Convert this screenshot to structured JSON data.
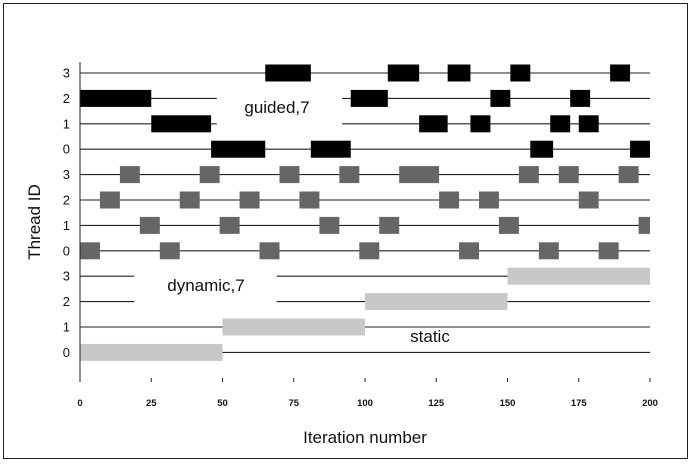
{
  "chart_data": {
    "type": "gantt",
    "xlabel": "Iteration number",
    "ylabel": "Thread ID",
    "xlim": [
      0,
      200
    ],
    "x_ticks": [
      "0",
      "25",
      "50",
      "75",
      "100",
      "125",
      "150",
      "175",
      "200"
    ],
    "grid": false,
    "groups": [
      {
        "name": "guided,7",
        "color": "#000000",
        "threads": [
          {
            "id": "0",
            "blocks": [
              [
                46,
                65
              ],
              [
                81,
                95
              ],
              [
                158,
                166
              ],
              [
                193,
                200
              ]
            ]
          },
          {
            "id": "1",
            "blocks": [
              [
                25,
                46
              ],
              [
                119,
                129
              ],
              [
                137,
                144
              ],
              [
                165,
                172
              ],
              [
                175,
                182
              ]
            ]
          },
          {
            "id": "2",
            "blocks": [
              [
                0,
                25
              ],
              [
                95,
                108
              ],
              [
                144,
                151
              ],
              [
                172,
                179
              ]
            ]
          },
          {
            "id": "3",
            "blocks": [
              [
                65,
                81
              ],
              [
                108,
                119
              ],
              [
                129,
                137
              ],
              [
                151,
                158
              ],
              [
                186,
                193
              ]
            ]
          }
        ]
      },
      {
        "name": "dynamic,7",
        "color": "#666666",
        "threads": [
          {
            "id": "0",
            "blocks": [
              [
                0,
                7
              ],
              [
                28,
                35
              ],
              [
                63,
                70
              ],
              [
                98,
                105
              ],
              [
                133,
                140
              ],
              [
                161,
                168
              ],
              [
                182,
                189
              ]
            ]
          },
          {
            "id": "1",
            "blocks": [
              [
                21,
                28
              ],
              [
                49,
                56
              ],
              [
                84,
                91
              ],
              [
                105,
                112
              ],
              [
                147,
                154
              ],
              [
                196,
                200
              ]
            ]
          },
          {
            "id": "2",
            "blocks": [
              [
                7,
                14
              ],
              [
                35,
                42
              ],
              [
                56,
                63
              ],
              [
                77,
                84
              ],
              [
                126,
                133
              ],
              [
                140,
                147
              ],
              [
                175,
                182
              ]
            ]
          },
          {
            "id": "3",
            "blocks": [
              [
                14,
                21
              ],
              [
                42,
                49
              ],
              [
                70,
                77
              ],
              [
                91,
                98
              ],
              [
                112,
                126
              ],
              [
                154,
                161
              ],
              [
                168,
                175
              ],
              [
                189,
                196
              ]
            ]
          }
        ]
      },
      {
        "name": "static",
        "color": "#c8c8c8",
        "threads": [
          {
            "id": "0",
            "blocks": [
              [
                0,
                50
              ]
            ]
          },
          {
            "id": "1",
            "blocks": [
              [
                50,
                100
              ]
            ]
          },
          {
            "id": "2",
            "blocks": [
              [
                100,
                150
              ]
            ]
          },
          {
            "id": "3",
            "blocks": [
              [
                150,
                200
              ]
            ]
          }
        ]
      }
    ],
    "annotations": [
      "guided,7",
      "dynamic,7",
      "static"
    ]
  }
}
